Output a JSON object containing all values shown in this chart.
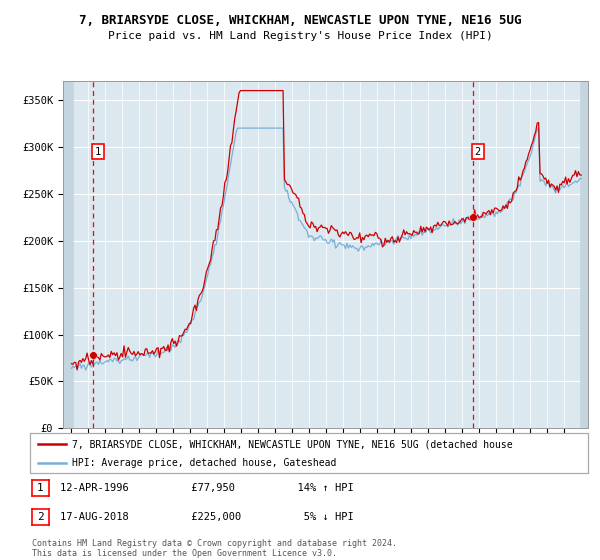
{
  "title": "7, BRIARSYDE CLOSE, WHICKHAM, NEWCASTLE UPON TYNE, NE16 5UG",
  "subtitle": "Price paid vs. HM Land Registry's House Price Index (HPI)",
  "ylim": [
    0,
    370000
  ],
  "yticks": [
    0,
    50000,
    100000,
    150000,
    200000,
    250000,
    300000,
    350000
  ],
  "ytick_labels": [
    "£0",
    "£50K",
    "£100K",
    "£150K",
    "£200K",
    "£250K",
    "£300K",
    "£350K"
  ],
  "xlim_start": 1994.5,
  "xlim_end": 2025.4,
  "hpi_color": "#7bafd4",
  "price_color": "#cc0000",
  "bg_color": "#dce8f0",
  "grid_color": "#ffffff",
  "transaction1_date": 1996.28,
  "transaction1_price": 77950,
  "transaction1_label": "1",
  "transaction2_date": 2018.63,
  "transaction2_price": 225000,
  "transaction2_label": "2",
  "legend_line1": "7, BRIARSYDE CLOSE, WHICKHAM, NEWCASTLE UPON TYNE, NE16 5UG (detached house",
  "legend_line2": "HPI: Average price, detached house, Gateshead",
  "copyright": "Contains HM Land Registry data © Crown copyright and database right 2024.\nThis data is licensed under the Open Government Licence v3.0."
}
